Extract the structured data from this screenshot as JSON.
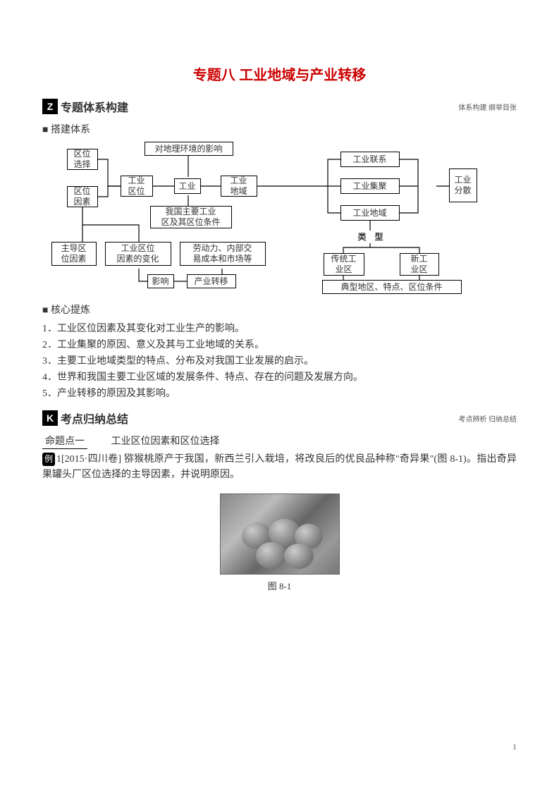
{
  "title": "专题八  工业地域与产业转移",
  "section1": {
    "badge": "Z",
    "heading": "专题体系构建",
    "sub": "体系构建  纲举目张"
  },
  "build_label": "■ 搭建体系",
  "diagram": {
    "boxes": {
      "b1": "区位\n选择",
      "b2": "区位\n因素",
      "b3": "工业\n区位",
      "b4": "工业",
      "b5": "工业\n地域",
      "b6": "对地理环境的影响",
      "b7": "我国主要工业\n区及其区位条件",
      "b8": "工业联系",
      "b9": "工业集聚",
      "b10": "工业地域",
      "b11": "工业\n分散",
      "b12": "类　型",
      "b13": "主导区\n位因素",
      "b14": "工业区位\n因素的变化",
      "b15": "劳动力、内部交\n易成本和市场等",
      "b16": "传统工\n业区",
      "b17": "新工\n业区",
      "b18": "影响",
      "b19": "产业转移",
      "b20": "典型地区、特点、区位条件"
    }
  },
  "core_label": "■ 核心提炼",
  "core_items": {
    "c1": "1．工业区位因素及其变化对工业生产的影响。",
    "c2": "2．工业集聚的原因、意义及其与工业地域的关系。",
    "c3": "3．主要工业地域类型的特点、分布及对我国工业发展的启示。",
    "c4": "4．世界和我国主要工业区域的发展条件、特点、存在的问题及发展方向。",
    "c5": "5．产业转移的原因及其影响。"
  },
  "section2": {
    "badge": "K",
    "heading": "考点归纳总结",
    "sub": "考点辨析  归纳总结"
  },
  "topic": {
    "label": "命题点一",
    "text": "工业区位因素和区位选择"
  },
  "example": {
    "badge": "例",
    "num": "1",
    "source": "[2015·四川卷]",
    "body1": "猕猴桃原产于我国，新西兰引入栽培，将改良后的优良品种称\"奇异果\"(图 8­-1)。指出奇异果罐头厂区位选择的主导因素，并说明原因。"
  },
  "figure_caption": "图 8-­1",
  "page_number": "1"
}
